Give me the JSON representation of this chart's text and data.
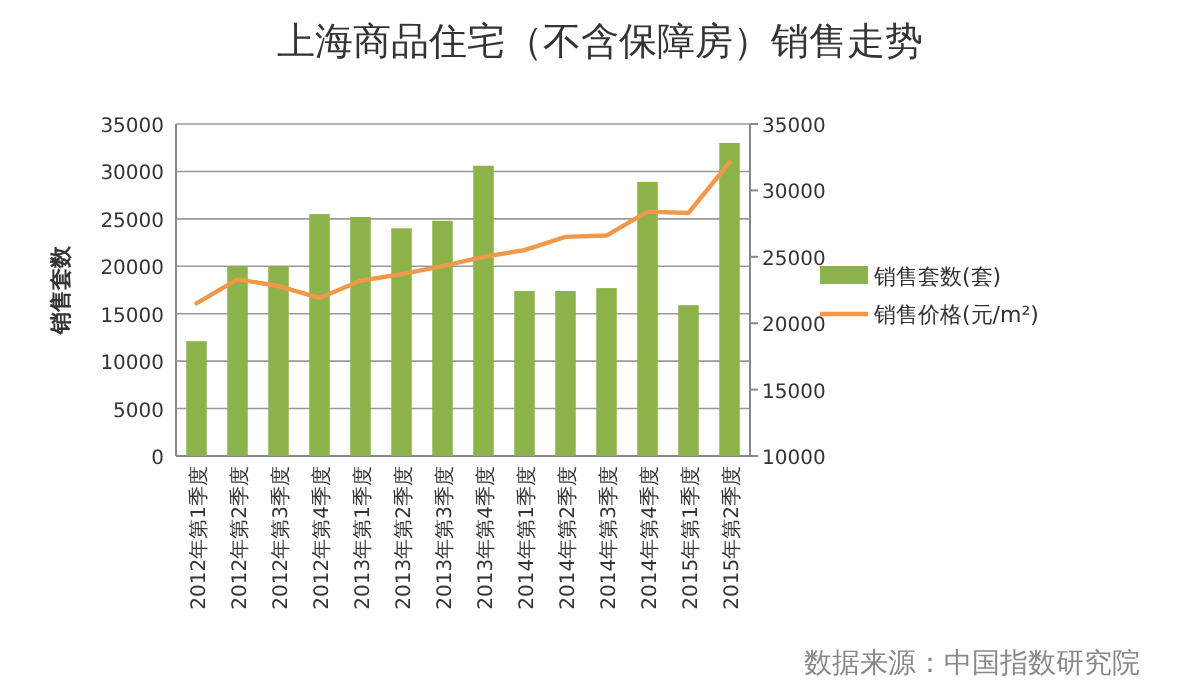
{
  "chart_data": {
    "type": "bar",
    "title": "上海商品住宅（不含保障房）销售走势",
    "ylabel": "销售套数",
    "categories": [
      "2012年第1季度",
      "2012年第2季度",
      "2012年第3季度",
      "2012年第4季度",
      "2013年第1季度",
      "2013年第2季度",
      "2013年第3季度",
      "2013年第4季度",
      "2014年第1季度",
      "2014年第2季度",
      "2014年第3季度",
      "2014年第4季度",
      "2015年第1季度",
      "2015年第2季度"
    ],
    "series": [
      {
        "name": "销售套数(套)",
        "color": "#8cb24a",
        "values": [
          12100,
          20000,
          20000,
          25500,
          25200,
          24000,
          24800,
          30600,
          17400,
          17400,
          17700,
          28900,
          15900,
          33000
        ]
      },
      {
        "name": "销售价格(元/m²)",
        "type": "line",
        "axis": "y2",
        "color": "#f0994a",
        "values": [
          21500,
          23300,
          22800,
          21900,
          23200,
          23700,
          24300,
          25000,
          25500,
          26500,
          26600,
          28400,
          28300,
          32100
        ]
      }
    ],
    "ylim": [
      0,
      35000
    ],
    "yticks": [
      0,
      5000,
      10000,
      15000,
      20000,
      25000,
      30000,
      35000
    ],
    "y2lim": [
      10000,
      35000
    ],
    "y2ticks": [
      10000,
      15000,
      20000,
      25000,
      30000,
      35000
    ],
    "grid": "y",
    "legend": "right",
    "marker": "none",
    "annotations": [
      "数据来源：中国指数研究院"
    ]
  }
}
